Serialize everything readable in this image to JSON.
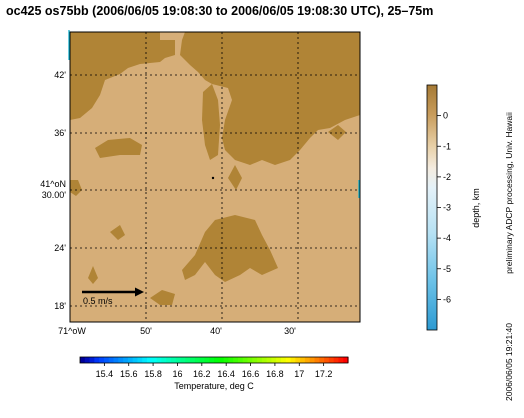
{
  "title": "oc425 os75bb (2006/06/05 19:08:30 to 2006/06/05 19:08:30 UTC), 25–75m",
  "chart_data": {
    "type": "heatmap",
    "map": {
      "lat_ticks": [
        "42'",
        "36'",
        "41^oN\n30.00'",
        "24'",
        "18'"
      ],
      "lon_ticks": [
        "71^oW",
        "50'",
        "40'",
        "30'"
      ],
      "grid": true,
      "scale_arrow_label": "0.5 m/s"
    },
    "depth_colorbar": {
      "label": "depth, km",
      "ticks": [
        0,
        -1,
        -2,
        -3,
        -4,
        -5,
        -6
      ],
      "range": [
        -7,
        1
      ]
    },
    "temperature_colorbar": {
      "label": "Temperature, deg C",
      "ticks": [
        "15.4",
        "15.6",
        "15.8",
        "16",
        "16.2",
        "16.4",
        "16.6",
        "16.8",
        "17",
        "17.2"
      ],
      "range": [
        15.2,
        17.4
      ]
    },
    "colors": {
      "shallow": "#b08436",
      "deep": "#d6ae78",
      "grid": "#000000"
    }
  },
  "side_note": "preliminary ADCP processing,  Univ. Hawaii",
  "timestamp": "2006/06/05 19:21:40"
}
